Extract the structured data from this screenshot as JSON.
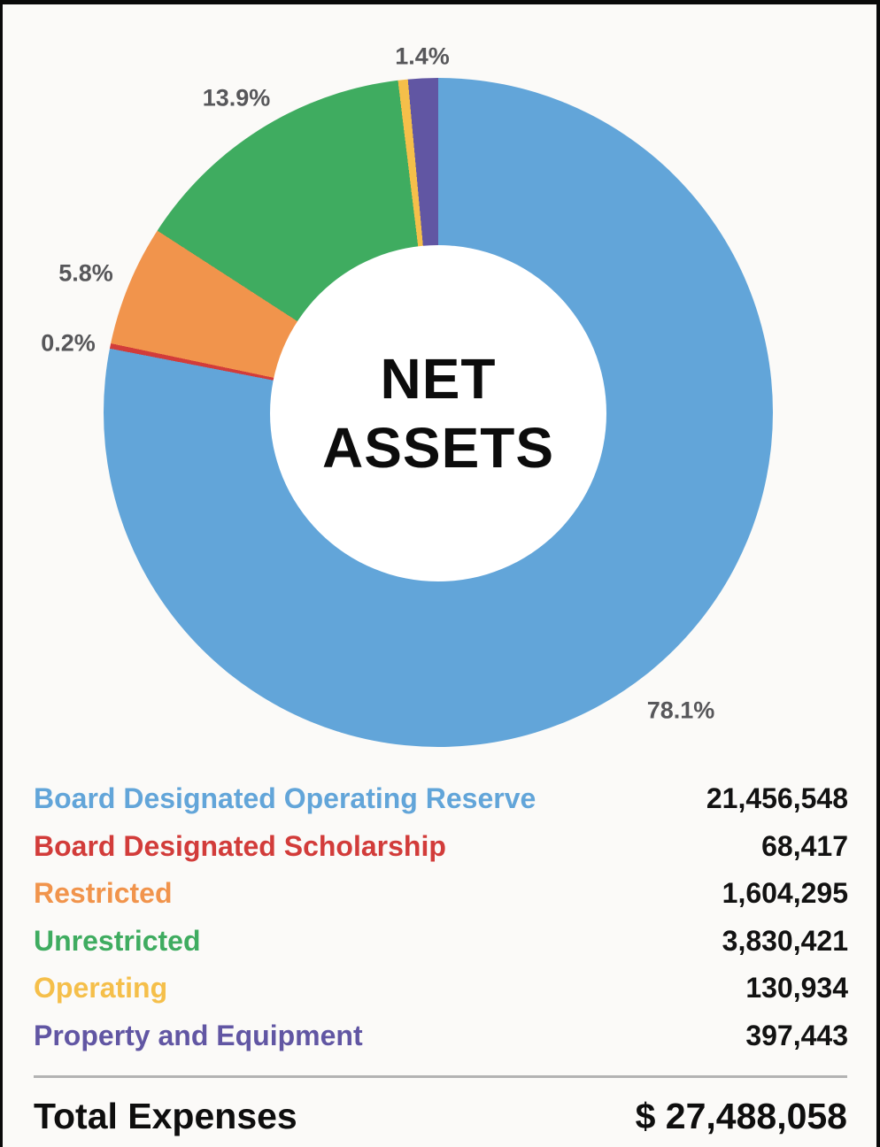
{
  "chart_data": {
    "type": "pie",
    "subtype": "donut",
    "title": "NET ASSETS",
    "center_label": {
      "line1": "NET",
      "line2": "ASSETS"
    },
    "legend_position": "bottom",
    "slices": [
      {
        "name": "Board Designated Operating Reserve",
        "value": 21456548,
        "value_formatted": "21,456,548",
        "pct": 78.1,
        "pct_label": "78.1%",
        "color": "#62a5d9"
      },
      {
        "name": "Board Designated Scholarship",
        "value": 68417,
        "value_formatted": "68,417",
        "pct": 0.2,
        "pct_label": "0.2%",
        "color": "#d23c3a"
      },
      {
        "name": "Restricted",
        "value": 1604295,
        "value_formatted": "1,604,295",
        "pct": 5.8,
        "pct_label": "5.8%",
        "color": "#f1944c"
      },
      {
        "name": "Unrestricted",
        "value": 3830421,
        "value_formatted": "3,830,421",
        "pct": 13.9,
        "pct_label": "13.9%",
        "color": "#3fac60"
      },
      {
        "name": "Operating",
        "value": 130934,
        "value_formatted": "130,934",
        "pct": 0.5,
        "pct_label": "",
        "color": "#f5bf4a"
      },
      {
        "name": "Property and Equipment",
        "value": 397443,
        "value_formatted": "397,443",
        "pct": 1.4,
        "pct_label": "1.4%",
        "color": "#6156a3"
      }
    ],
    "total": {
      "label": "Total Expenses",
      "value": 27488058,
      "value_formatted": "$ 27,488,058"
    },
    "colors": {
      "blue": "#62a5d9",
      "red": "#d23c3a",
      "orange": "#f1944c",
      "green": "#3fac60",
      "yellow": "#f5bf4a",
      "purple": "#6156a3",
      "pct_text": "#57575a",
      "value_text": "#121212"
    }
  }
}
